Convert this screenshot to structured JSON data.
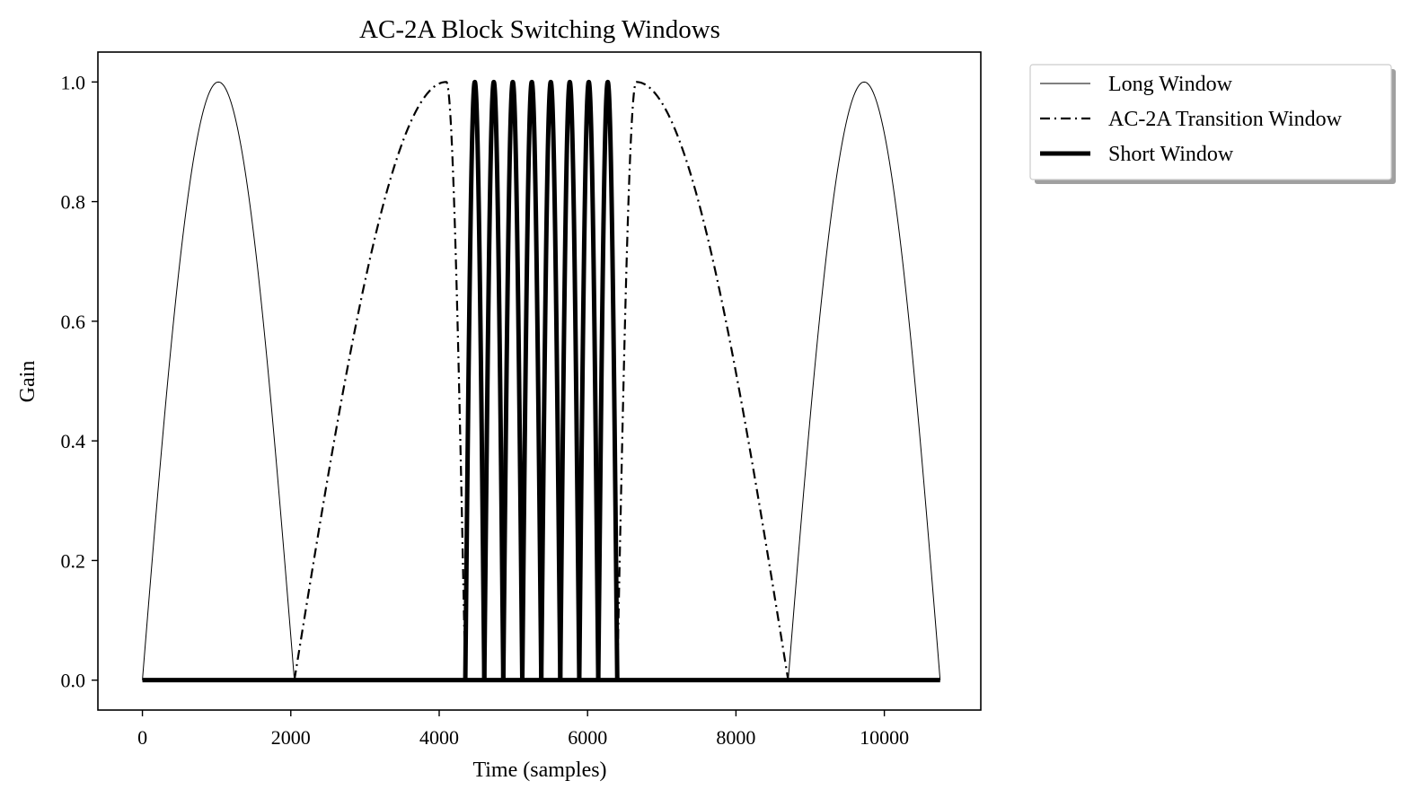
{
  "chart_data": {
    "type": "line",
    "title": "AC-2A Block Switching Windows",
    "xlabel": "Time (samples)",
    "ylabel": "Gain",
    "xlim": [
      -600,
      11300
    ],
    "ylim": [
      -0.05,
      1.05
    ],
    "xticks": [
      0,
      2000,
      4000,
      6000,
      8000,
      10000
    ],
    "xtick_labels": [
      "0",
      "2000",
      "4000",
      "6000",
      "8000",
      "10000"
    ],
    "yticks": [
      0.0,
      0.2,
      0.4,
      0.6,
      0.8,
      1.0
    ],
    "ytick_labels": [
      "0.0",
      "0.2",
      "0.4",
      "0.6",
      "0.8",
      "1.0"
    ],
    "grid": false,
    "legend_position": "outside-upper-right",
    "series": [
      {
        "name": "Long Window",
        "style": "solid-thin",
        "color": "#000000",
        "windows": [
          {
            "start": 0,
            "end": 2048,
            "peak": 1.0
          },
          {
            "start": 8704,
            "end": 10752,
            "peak": 1.0
          }
        ]
      },
      {
        "name": "AC-2A Transition Window",
        "style": "dash-dot",
        "color": "#000000",
        "transition": {
          "start": 2048,
          "end": 8704,
          "rise_end": 4096,
          "fall_start": 4352,
          "rise2_start": 6400,
          "fall2_start": 6656
        }
      },
      {
        "name": "Short Window",
        "style": "solid-thick",
        "color": "#000000",
        "baseline": {
          "x": [
            0,
            10752
          ],
          "y": 0.0
        },
        "pulses": [
          {
            "start": 4352,
            "end": 4608
          },
          {
            "start": 4608,
            "end": 4864
          },
          {
            "start": 4864,
            "end": 5120
          },
          {
            "start": 5120,
            "end": 5376
          },
          {
            "start": 5376,
            "end": 5632
          },
          {
            "start": 5632,
            "end": 5888
          },
          {
            "start": 5888,
            "end": 6144
          },
          {
            "start": 6144,
            "end": 6400
          }
        ]
      }
    ]
  }
}
